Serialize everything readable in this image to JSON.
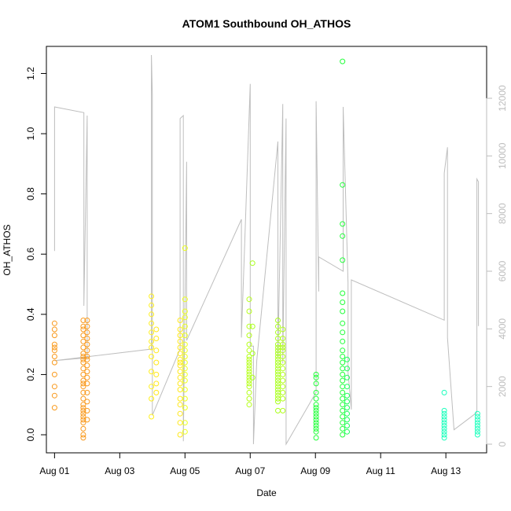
{
  "chart_data": {
    "type": "scatter",
    "title": "ATOM1 Southbound OH_ATHOS",
    "xlabel": "Date",
    "ylabel": "OH_ATHOS",
    "x_ticks": [
      "Aug 01",
      "Aug 03",
      "Aug 05",
      "Aug 07",
      "Aug 09",
      "Aug 11",
      "Aug 13"
    ],
    "y_ticks": [
      "0.0",
      "0.2",
      "0.4",
      "0.6",
      "0.8",
      "1.0",
      "1.2"
    ],
    "y2_ticks": [
      "0",
      "2000",
      "4000",
      "6000",
      "8000",
      "10000",
      "12000"
    ],
    "xlim": [
      -0.25,
      13.25
    ],
    "ylim": [
      -0.06,
      1.29
    ],
    "y2lim": [
      -300,
      13800
    ],
    "right_axis_color": "#bdbdbd",
    "line_color": "#bebebe",
    "color_scale": [
      "#ff9a1a",
      "#ffb41e",
      "#ffe81c",
      "#e7ff1c",
      "#a8ff1a",
      "#46ff2c",
      "#1aff5a",
      "#1affc0"
    ],
    "series": [
      {
        "x": 0.0,
        "color": "#f99a1e",
        "values": [
          0.09,
          0.13,
          0.16,
          0.2,
          0.24,
          0.26,
          0.28,
          0.29,
          0.3,
          0.33,
          0.35,
          0.37
        ]
      },
      {
        "x": 0.88,
        "color": "#f99a1e",
        "values": [
          -0.01,
          0.0,
          0.02,
          0.04,
          0.05,
          0.06,
          0.07,
          0.08,
          0.09,
          0.1,
          0.12,
          0.14,
          0.16,
          0.17,
          0.18,
          0.2,
          0.22,
          0.24,
          0.25,
          0.26,
          0.27,
          0.29,
          0.31,
          0.33,
          0.35,
          0.36,
          0.38
        ]
      },
      {
        "x": 1.0,
        "color": "#f99a1e",
        "values": [
          0.05,
          0.08,
          0.11,
          0.14,
          0.17,
          0.19,
          0.21,
          0.23,
          0.25,
          0.26,
          0.28,
          0.3,
          0.32,
          0.34,
          0.36,
          0.38
        ]
      },
      {
        "x": 2.97,
        "color": "#fff01e",
        "values": [
          0.06,
          0.12,
          0.16,
          0.21,
          0.26,
          0.29,
          0.31,
          0.34,
          0.37,
          0.4,
          0.43,
          0.46
        ]
      },
      {
        "x": 3.12,
        "color": "#ffe81c",
        "values": [
          0.14,
          0.17,
          0.2,
          0.24,
          0.28,
          0.32,
          0.35
        ]
      },
      {
        "x": 3.85,
        "color": "#ffe81c",
        "values": [
          0.0,
          0.04,
          0.07,
          0.1,
          0.12,
          0.15,
          0.17,
          0.19,
          0.21,
          0.23,
          0.24,
          0.25,
          0.27,
          0.29,
          0.31,
          0.33,
          0.35,
          0.38
        ]
      },
      {
        "x": 4.0,
        "color": "#ecff1c",
        "values": [
          0.01,
          0.04,
          0.09,
          0.12,
          0.15,
          0.18,
          0.2,
          0.22,
          0.24,
          0.26,
          0.28,
          0.3,
          0.33,
          0.36,
          0.39,
          0.41,
          0.45,
          0.62
        ]
      },
      {
        "x": 5.97,
        "color": "#b6ff1c",
        "values": [
          0.1,
          0.12,
          0.14,
          0.16,
          0.17,
          0.18,
          0.19,
          0.2,
          0.21,
          0.22,
          0.23,
          0.24,
          0.25,
          0.26,
          0.28,
          0.3,
          0.33,
          0.36,
          0.41,
          0.45
        ]
      },
      {
        "x": 6.07,
        "color": "#a8ff1a",
        "values": [
          0.19,
          0.27,
          0.36,
          0.57
        ]
      },
      {
        "x": 6.85,
        "color": "#a8ff1a",
        "values": [
          0.08,
          0.11,
          0.12,
          0.13,
          0.14,
          0.15,
          0.16,
          0.17,
          0.18,
          0.19,
          0.2,
          0.21,
          0.22,
          0.23,
          0.24,
          0.25,
          0.26,
          0.27,
          0.28,
          0.29,
          0.3,
          0.32,
          0.34,
          0.36,
          0.38
        ]
      },
      {
        "x": 7.0,
        "color": "#b2ff1c",
        "values": [
          0.08,
          0.12,
          0.14,
          0.16,
          0.18,
          0.2,
          0.22,
          0.24,
          0.26,
          0.28,
          0.29,
          0.3,
          0.32,
          0.35
        ]
      },
      {
        "x": 8.02,
        "color": "#22ff3a",
        "values": [
          -0.01,
          0.01,
          0.02,
          0.03,
          0.04,
          0.05,
          0.06,
          0.07,
          0.08,
          0.09,
          0.1,
          0.12,
          0.14,
          0.17,
          0.19,
          0.2
        ]
      },
      {
        "x": 8.83,
        "color": "#22ff3a",
        "values": [
          0.0,
          0.02,
          0.04,
          0.06,
          0.08,
          0.1,
          0.12,
          0.14,
          0.16,
          0.18,
          0.2,
          0.22,
          0.24,
          0.26,
          0.28,
          0.31,
          0.34,
          0.37,
          0.41,
          0.44,
          0.47,
          0.58,
          0.66,
          0.7,
          0.83,
          1.24
        ]
      },
      {
        "x": 8.97,
        "color": "#1aff5a",
        "values": [
          0.01,
          0.03,
          0.05,
          0.07,
          0.09,
          0.11,
          0.13,
          0.16,
          0.19,
          0.22,
          0.25
        ]
      },
      {
        "x": 11.95,
        "color": "#1affbc",
        "values": [
          -0.01,
          0.0,
          0.01,
          0.02,
          0.03,
          0.04,
          0.05,
          0.06,
          0.07,
          0.08,
          0.14
        ]
      },
      {
        "x": 12.97,
        "color": "#1affbc",
        "values": [
          0.0,
          0.01,
          0.02,
          0.03,
          0.04,
          0.05,
          0.06,
          0.07
        ]
      }
    ],
    "secondary_line": {
      "axis": "right",
      "points": [
        {
          "x": 0.0,
          "y": 6700
        },
        {
          "x": 0.0,
          "y": 11700
        },
        {
          "x": 0.9,
          "y": 11500
        },
        {
          "x": 0.9,
          "y": 4800
        },
        {
          "x": 1.0,
          "y": 11400
        },
        {
          "x": 1.0,
          "y": 3000
        },
        {
          "x": 0.0,
          "y": 2900
        },
        {
          "x": 2.97,
          "y": 3300
        },
        {
          "x": 2.97,
          "y": 13500
        },
        {
          "x": 3.0,
          "y": 12100
        },
        {
          "x": 3.0,
          "y": 1000
        },
        {
          "x": 3.85,
          "y": 3300
        },
        {
          "x": 3.85,
          "y": 11300
        },
        {
          "x": 3.95,
          "y": 11400
        },
        {
          "x": 3.95,
          "y": 100
        },
        {
          "x": 4.05,
          "y": 9800
        },
        {
          "x": 4.05,
          "y": 3600
        },
        {
          "x": 5.73,
          "y": 7800
        },
        {
          "x": 5.73,
          "y": 3700
        },
        {
          "x": 6.0,
          "y": 12500
        },
        {
          "x": 6.0,
          "y": 3400
        },
        {
          "x": 6.1,
          "y": 3400
        },
        {
          "x": 6.1,
          "y": 0
        },
        {
          "x": 6.2,
          "y": 2900
        },
        {
          "x": 6.85,
          "y": 10500
        },
        {
          "x": 6.85,
          "y": 3000
        },
        {
          "x": 7.0,
          "y": 11800
        },
        {
          "x": 7.0,
          "y": 2800
        },
        {
          "x": 7.1,
          "y": 11300
        },
        {
          "x": 7.1,
          "y": 0
        },
        {
          "x": 8.02,
          "y": 1800
        },
        {
          "x": 8.02,
          "y": 11900
        },
        {
          "x": 8.1,
          "y": 5300
        },
        {
          "x": 8.1,
          "y": 6500
        },
        {
          "x": 8.85,
          "y": 6000
        },
        {
          "x": 8.85,
          "y": 11700
        },
        {
          "x": 9.0,
          "y": 5600
        },
        {
          "x": 9.0,
          "y": 2500
        },
        {
          "x": 9.1,
          "y": 1200
        },
        {
          "x": 9.1,
          "y": 5700
        },
        {
          "x": 11.95,
          "y": 4300
        },
        {
          "x": 11.95,
          "y": 9400
        },
        {
          "x": 12.05,
          "y": 10300
        },
        {
          "x": 12.05,
          "y": 3700
        },
        {
          "x": 12.25,
          "y": 500
        },
        {
          "x": 12.95,
          "y": 1100
        },
        {
          "x": 12.95,
          "y": 9200
        },
        {
          "x": 13.0,
          "y": 9100
        },
        {
          "x": 13.0,
          "y": 4100
        }
      ]
    }
  }
}
